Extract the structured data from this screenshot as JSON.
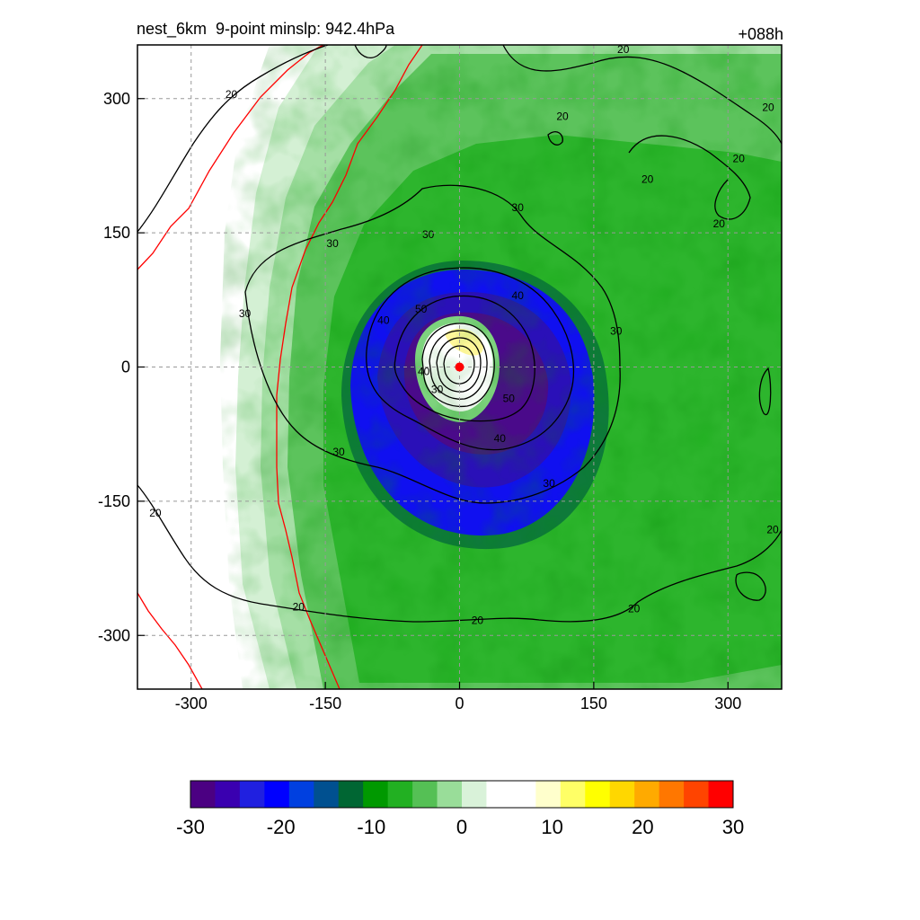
{
  "title_left": "nest_6km  9-point minslp: 942.4hPa",
  "title_right": "+088h",
  "chart_data": {
    "type": "heatmap",
    "title": "nest_6km  9-point minslp: 942.4hPa",
    "forecast_hour": "+088h",
    "xlim": [
      -360,
      360
    ],
    "ylim": [
      -360,
      360
    ],
    "x_ticks": [
      -300,
      -150,
      0,
      150,
      300
    ],
    "y_ticks": [
      -300,
      -150,
      0,
      150,
      300
    ],
    "grid": "dashed",
    "colorbar": {
      "range": [
        -30,
        30
      ],
      "ticks": [
        -30,
        -20,
        -10,
        0,
        10,
        20,
        30
      ],
      "colors": [
        "#4b0082",
        "#3a00b0",
        "#2020e0",
        "#0000ff",
        "#0040e0",
        "#005090",
        "#006633",
        "#009900",
        "#22b022",
        "#55c055",
        "#99dd99",
        "#d9f2d9",
        "#ffffff",
        "#ffffff",
        "#ffffcc",
        "#ffff66",
        "#ffff00",
        "#ffd700",
        "#ffaa00",
        "#ff7700",
        "#ff4400",
        "#ff0000"
      ]
    },
    "contour_labels": [
      {
        "text": "20",
        "x": -255,
        "y": 305
      },
      {
        "text": "20",
        "x": 183,
        "y": 355
      },
      {
        "text": "20",
        "x": 115,
        "y": 280
      },
      {
        "text": "20",
        "x": 345,
        "y": 290
      },
      {
        "text": "20",
        "x": 312,
        "y": 233
      },
      {
        "text": "20",
        "x": 210,
        "y": 210
      },
      {
        "text": "20",
        "x": 290,
        "y": 160
      },
      {
        "text": "30",
        "x": 65,
        "y": 178
      },
      {
        "text": "30",
        "x": -35,
        "y": 148
      },
      {
        "text": "30",
        "x": -142,
        "y": 138
      },
      {
        "text": "30",
        "x": -240,
        "y": 60
      },
      {
        "text": "30",
        "x": 175,
        "y": 40
      },
      {
        "text": "40",
        "x": 65,
        "y": 80
      },
      {
        "text": "40",
        "x": -85,
        "y": 52
      },
      {
        "text": "50",
        "x": -43,
        "y": 65
      },
      {
        "text": "50",
        "x": 55,
        "y": -35
      },
      {
        "text": "40",
        "x": 45,
        "y": -80
      },
      {
        "text": "40",
        "x": -40,
        "y": -5
      },
      {
        "text": "30",
        "x": -25,
        "y": -25
      },
      {
        "text": "30",
        "x": -135,
        "y": -95
      },
      {
        "text": "30",
        "x": 100,
        "y": -130
      },
      {
        "text": "20",
        "x": -340,
        "y": -163
      },
      {
        "text": "20",
        "x": -180,
        "y": -268
      },
      {
        "text": "20",
        "x": 20,
        "y": -283
      },
      {
        "text": "20",
        "x": 195,
        "y": -270
      },
      {
        "text": "20",
        "x": 350,
        "y": -182
      }
    ],
    "center_marker": {
      "x": 0,
      "y": 0,
      "color": "#ff0000"
    }
  }
}
